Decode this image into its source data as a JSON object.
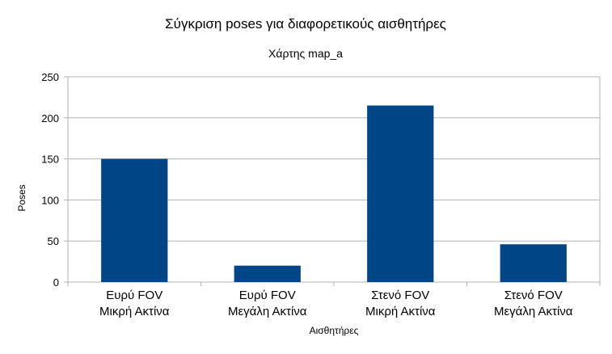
{
  "chart_data": {
    "type": "bar",
    "title": "Σύγκριση poses για διαφορετικούς αισθητήρες",
    "subtitle": "Χάρτης map_a",
    "xlabel": "Αισθητήρες",
    "ylabel": "Poses",
    "categories": [
      [
        "Ευρύ FOV",
        "Μικρή Ακτίνα"
      ],
      [
        "Ευρύ FOV",
        "Μεγάλη Ακτίνα"
      ],
      [
        "Στενό FOV",
        "Μικρή Ακτίνα"
      ],
      [
        "Στενό FOV",
        "Μεγάλη Ακτίνα"
      ]
    ],
    "values": [
      150,
      20,
      215,
      46
    ],
    "ylim": [
      0,
      250
    ],
    "yticks": [
      0,
      50,
      100,
      150,
      200,
      250
    ],
    "grid": true,
    "legend": "none",
    "bar_color": "#004586",
    "grid_color": "#b3b3b3"
  }
}
